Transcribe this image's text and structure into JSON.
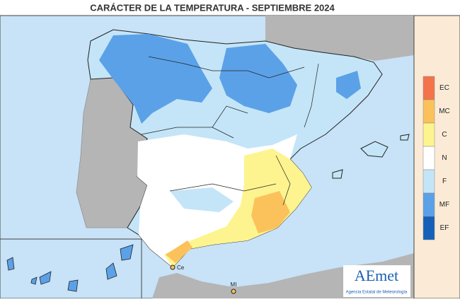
{
  "header": {
    "title": "CARÁCTER DE LA TEMPERATURA - SEPTIEMBRE 2024"
  },
  "legend": {
    "items": [
      {
        "code": "EC",
        "color": "#f4734a"
      },
      {
        "code": "MC",
        "color": "#fbc25c"
      },
      {
        "code": "C",
        "color": "#fdf48f"
      },
      {
        "code": "N",
        "color": "#ffffff"
      },
      {
        "code": "F",
        "color": "#c4e5f7"
      },
      {
        "code": "MF",
        "color": "#5ba1e8"
      },
      {
        "code": "EF",
        "color": "#1660b8"
      }
    ]
  },
  "map_labels": {
    "ceuta": "Ce",
    "melilla": "MI"
  },
  "logo": {
    "name": "AEmet",
    "subtitle": "Agencia Estatal de Meteorología"
  }
}
